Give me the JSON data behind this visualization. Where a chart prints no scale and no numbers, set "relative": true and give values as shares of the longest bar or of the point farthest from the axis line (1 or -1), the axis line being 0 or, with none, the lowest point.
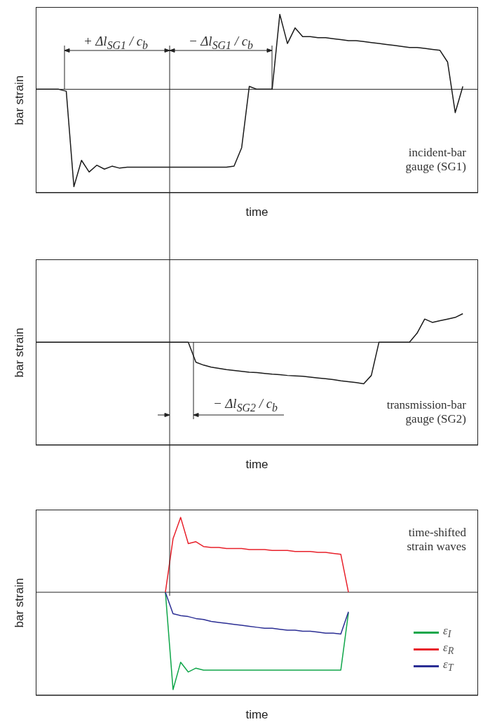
{
  "chart_data": [
    {
      "type": "line",
      "relative": true,
      "ylabel": "bar strain",
      "xlabel": "time",
      "categories": [
        null,
        null,
        null,
        null,
        null,
        null,
        null,
        null,
        null,
        null,
        null,
        null,
        null,
        null,
        null,
        null,
        null,
        null,
        null,
        null,
        null,
        null,
        null,
        null,
        null,
        null,
        null,
        null,
        null,
        null,
        null,
        null,
        null,
        null,
        null,
        null,
        null,
        null,
        null,
        null,
        null,
        null,
        null,
        null,
        null,
        null,
        null,
        null,
        null,
        null,
        null,
        null,
        null,
        null,
        null,
        null,
        null,
        null,
        null
      ],
      "series": [
        {
          "color": "#1a1a1a",
          "values": [
            0,
            0,
            0,
            0,
            -0.02,
            -1,
            -0.73,
            -0.85,
            -0.78,
            -0.82,
            -0.79,
            -0.81,
            -0.8,
            -0.8,
            -0.8,
            -0.8,
            -0.8,
            -0.8,
            -0.8,
            -0.8,
            -0.8,
            -0.8,
            -0.8,
            -0.8,
            -0.8,
            -0.8,
            -0.79,
            -0.6,
            0.03,
            0,
            0,
            0,
            0.77,
            0.47,
            0.63,
            0.54,
            0.54,
            0.53,
            0.53,
            0.52,
            0.51,
            0.5,
            0.5,
            0.49,
            0.48,
            0.47,
            0.46,
            0.45,
            0.44,
            0.43,
            0.43,
            0.42,
            0.41,
            0.4,
            0.28,
            -0.24,
            0.03,
            null,
            null
          ]
        }
      ],
      "annotations": [
        "+ Δl$_{SG1}$ / c$_{b}$",
        "− Δl$_{SG1}$ / c$_{b}$",
        "incident-bar gauge (SG1)"
      ]
    },
    {
      "type": "line",
      "relative": true,
      "ylabel": "bar strain",
      "xlabel": "time",
      "categories": [
        null,
        null,
        null,
        null,
        null,
        null,
        null,
        null,
        null,
        null,
        null,
        null,
        null,
        null,
        null,
        null,
        null,
        null,
        null,
        null,
        null,
        null,
        null,
        null,
        null,
        null,
        null,
        null,
        null,
        null,
        null,
        null,
        null,
        null,
        null,
        null,
        null,
        null,
        null,
        null,
        null,
        null,
        null,
        null,
        null,
        null,
        null,
        null,
        null,
        null,
        null,
        null,
        null,
        null,
        null,
        null,
        null,
        null,
        null
      ],
      "series": [
        {
          "color": "#1a1a1a",
          "values": [
            0,
            0,
            0,
            0,
            0,
            0,
            0,
            0,
            0,
            0,
            0,
            0,
            0,
            0,
            0,
            0,
            0,
            0,
            0,
            0,
            0,
            -0.48,
            -0.55,
            -0.6,
            -0.63,
            -0.66,
            -0.68,
            -0.7,
            -0.72,
            -0.73,
            -0.75,
            -0.77,
            -0.78,
            -0.8,
            -0.81,
            -0.82,
            -0.84,
            -0.86,
            -0.88,
            -0.9,
            -0.93,
            -0.95,
            -0.97,
            -1,
            -0.8,
            0,
            0,
            0,
            0,
            0,
            0.22,
            0.56,
            0.48,
            0.52,
            0.56,
            0.6,
            0.69,
            null,
            null
          ]
        }
      ],
      "annotations": [
        "− Δl$_{SG2}$ / c$_{b}$",
        "transmission-bar gauge (SG2)"
      ]
    },
    {
      "type": "line",
      "relative": true,
      "ylabel": "bar strain",
      "xlabel": "time",
      "legend": "bottom right",
      "categories": [
        null,
        null,
        null,
        null,
        null,
        null,
        null,
        null,
        null,
        null,
        null,
        null,
        null,
        null,
        null,
        null,
        null,
        null,
        null,
        null,
        null,
        null,
        null,
        null,
        null,
        null,
        null,
        null,
        null,
        null,
        null,
        null,
        null,
        null,
        null,
        null,
        null,
        null,
        null,
        null,
        null,
        null,
        null,
        null,
        null,
        null,
        null,
        null,
        null,
        null,
        null,
        null,
        null,
        null,
        null,
        null,
        null,
        null,
        null
      ],
      "series": [
        {
          "name": "ε$_{I}$",
          "color": "#10a64a",
          "values": [
            null,
            null,
            null,
            null,
            null,
            null,
            null,
            null,
            null,
            null,
            null,
            null,
            null,
            null,
            null,
            null,
            null,
            0,
            -1,
            -0.72,
            -0.82,
            -0.78,
            -0.8,
            -0.8,
            -0.8,
            -0.8,
            -0.8,
            -0.8,
            -0.8,
            -0.8,
            -0.8,
            -0.8,
            -0.8,
            -0.8,
            -0.8,
            -0.8,
            -0.8,
            -0.8,
            -0.8,
            -0.8,
            -0.8,
            -0.21,
            null,
            null,
            null,
            null,
            null,
            null,
            null,
            null,
            null,
            null,
            null,
            null,
            null,
            null,
            null,
            null,
            null
          ]
        },
        {
          "name": "ε$_{R}$",
          "color": "#e8202a",
          "values": [
            null,
            null,
            null,
            null,
            null,
            null,
            null,
            null,
            null,
            null,
            null,
            null,
            null,
            null,
            null,
            null,
            null,
            0,
            0.55,
            0.77,
            0.5,
            0.52,
            0.47,
            0.46,
            0.46,
            0.45,
            0.45,
            0.45,
            0.44,
            0.44,
            0.44,
            0.43,
            0.43,
            0.43,
            0.42,
            0.42,
            0.42,
            0.41,
            0.41,
            0.4,
            0.39,
            0,
            null,
            null,
            null,
            null,
            null,
            null,
            null,
            null,
            null,
            null,
            null,
            null,
            null,
            null,
            null,
            null,
            null
          ]
        },
        {
          "name": "ε$_{T}$",
          "color": "#2b2e94",
          "values": [
            null,
            null,
            null,
            null,
            null,
            null,
            null,
            null,
            null,
            null,
            null,
            null,
            null,
            null,
            null,
            null,
            null,
            0,
            -0.22,
            -0.24,
            -0.25,
            -0.27,
            -0.28,
            -0.3,
            -0.31,
            -0.32,
            -0.33,
            -0.34,
            -0.35,
            -0.36,
            -0.37,
            -0.37,
            -0.38,
            -0.39,
            -0.39,
            -0.4,
            -0.4,
            -0.41,
            -0.42,
            -0.42,
            -0.43,
            -0.2,
            null,
            null,
            null,
            null,
            null,
            null,
            null,
            null,
            null,
            null,
            null,
            null,
            null,
            null,
            null,
            null,
            null
          ]
        }
      ],
      "annotations": [
        "time-shifted strain waves"
      ]
    }
  ]
}
